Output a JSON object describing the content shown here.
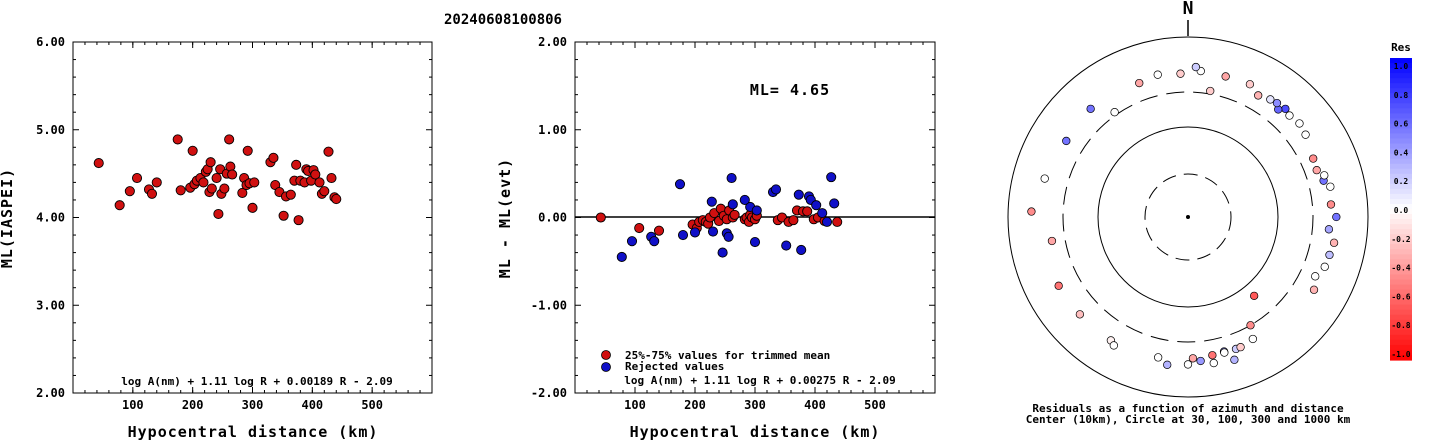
{
  "title": "20240608100806",
  "chart_data": [
    {
      "type": "scatter",
      "xlabel": "Hypocentral distance (km)",
      "ylabel": "ML(IASPEI)",
      "xlim": [
        0,
        600
      ],
      "ylim": [
        2.0,
        6.0
      ],
      "x_ticks": [
        "100",
        "200",
        "300",
        "400",
        "500"
      ],
      "y_ticks": [
        "2.00",
        "3.00",
        "4.00",
        "5.00",
        "6.00"
      ],
      "formula": "log A(nm) + 1.11 log R + 0.00189 R - 2.09",
      "series": [
        {
          "color": "#d01010",
          "points": [
            [
              43,
              4.62
            ],
            [
              78,
              4.14
            ],
            [
              95,
              4.3
            ],
            [
              107,
              4.45
            ],
            [
              127,
              4.32
            ],
            [
              132,
              4.27
            ],
            [
              140,
              4.4
            ],
            [
              175,
              4.89
            ],
            [
              180,
              4.31
            ],
            [
              196,
              4.34
            ],
            [
              200,
              4.76
            ],
            [
              203,
              4.38
            ],
            [
              207,
              4.42
            ],
            [
              213,
              4.45
            ],
            [
              218,
              4.4
            ],
            [
              222,
              4.52
            ],
            [
              225,
              4.55
            ],
            [
              228,
              4.29
            ],
            [
              230,
              4.63
            ],
            [
              232,
              4.33
            ],
            [
              240,
              4.45
            ],
            [
              243,
              4.04
            ],
            [
              246,
              4.55
            ],
            [
              248,
              4.27
            ],
            [
              253,
              4.33
            ],
            [
              257,
              4.5
            ],
            [
              261,
              4.89
            ],
            [
              263,
              4.58
            ],
            [
              266,
              4.49
            ],
            [
              283,
              4.28
            ],
            [
              286,
              4.45
            ],
            [
              290,
              4.37
            ],
            [
              292,
              4.76
            ],
            [
              295,
              4.39
            ],
            [
              300,
              4.11
            ],
            [
              303,
              4.4
            ],
            [
              330,
              4.63
            ],
            [
              335,
              4.68
            ],
            [
              338,
              4.37
            ],
            [
              345,
              4.29
            ],
            [
              352,
              4.02
            ],
            [
              356,
              4.24
            ],
            [
              364,
              4.26
            ],
            [
              370,
              4.42
            ],
            [
              373,
              4.6
            ],
            [
              377,
              3.97
            ],
            [
              380,
              4.42
            ],
            [
              387,
              4.4
            ],
            [
              390,
              4.55
            ],
            [
              393,
              4.53
            ],
            [
              398,
              4.42
            ],
            [
              402,
              4.54
            ],
            [
              405,
              4.49
            ],
            [
              412,
              4.4
            ],
            [
              416,
              4.27
            ],
            [
              420,
              4.3
            ],
            [
              427,
              4.75
            ],
            [
              432,
              4.45
            ],
            [
              437,
              4.23
            ],
            [
              440,
              4.21
            ]
          ]
        }
      ]
    },
    {
      "type": "scatter",
      "xlabel": "Hypocentral distance (km)",
      "ylabel": "ML - ML(evt)",
      "xlim": [
        0,
        600
      ],
      "ylim": [
        -2.0,
        2.0
      ],
      "x_ticks": [
        "100",
        "200",
        "300",
        "400",
        "500"
      ],
      "y_ticks": [
        "-2.00",
        "-1.00",
        "0.00",
        "1.00",
        "2.00"
      ],
      "annotation": "ML= 4.65",
      "legend": [
        "25%-75% values for trimmed mean",
        "Rejected values"
      ],
      "formula": "log A(nm) + 1.11 log R + 0.00275 R - 2.09",
      "series": [
        {
          "name": "25%-75% values for trimmed mean",
          "color": "#d01010",
          "points": [
            [
              43,
              0.0
            ],
            [
              107,
              -0.12
            ],
            [
              140,
              -0.15
            ],
            [
              196,
              -0.08
            ],
            [
              203,
              -0.12
            ],
            [
              207,
              -0.05
            ],
            [
              213,
              -0.03
            ],
            [
              218,
              -0.05
            ],
            [
              222,
              -0.07
            ],
            [
              225,
              0.0
            ],
            [
              232,
              0.05
            ],
            [
              240,
              -0.04
            ],
            [
              243,
              0.1
            ],
            [
              248,
              0.02
            ],
            [
              253,
              -0.02
            ],
            [
              257,
              0.08
            ],
            [
              263,
              0.0
            ],
            [
              266,
              0.03
            ],
            [
              283,
              -0.02
            ],
            [
              286,
              0.0
            ],
            [
              290,
              -0.05
            ],
            [
              292,
              0.03
            ],
            [
              295,
              0.0
            ],
            [
              300,
              -0.02
            ],
            [
              303,
              0.02
            ],
            [
              338,
              -0.03
            ],
            [
              345,
              0.0
            ],
            [
              356,
              -0.05
            ],
            [
              364,
              -0.03
            ],
            [
              370,
              0.08
            ],
            [
              380,
              0.07
            ],
            [
              387,
              0.07
            ],
            [
              398,
              -0.02
            ],
            [
              405,
              0.0
            ],
            [
              416,
              -0.04
            ],
            [
              437,
              -0.05
            ]
          ]
        },
        {
          "name": "Rejected values",
          "color": "#1010c8",
          "points": [
            [
              78,
              -0.45
            ],
            [
              95,
              -0.27
            ],
            [
              127,
              -0.22
            ],
            [
              132,
              -0.27
            ],
            [
              175,
              0.38
            ],
            [
              180,
              -0.2
            ],
            [
              200,
              -0.17
            ],
            [
              228,
              0.18
            ],
            [
              230,
              -0.16
            ],
            [
              246,
              -0.4
            ],
            [
              261,
              0.45
            ],
            [
              263,
              0.15
            ],
            [
              292,
              0.12
            ],
            [
              300,
              -0.28
            ],
            [
              330,
              0.29
            ],
            [
              335,
              0.32
            ],
            [
              352,
              -0.32
            ],
            [
              373,
              0.26
            ],
            [
              377,
              -0.37
            ],
            [
              390,
              0.24
            ],
            [
              393,
              0.2
            ],
            [
              402,
              0.14
            ],
            [
              412,
              0.05
            ],
            [
              420,
              -0.05
            ],
            [
              427,
              0.46
            ],
            [
              432,
              0.16
            ],
            [
              253,
              -0.18
            ],
            [
              256,
              -0.22
            ],
            [
              283,
              0.2
            ],
            [
              303,
              0.08
            ]
          ]
        }
      ]
    },
    {
      "type": "scatter",
      "subtype": "polar",
      "north_label": "N",
      "caption_line1": "Residuals as a function of azimuth and distance",
      "caption_line2": "Center (10km), Circle at 30, 100, 300 and 1000 km",
      "colorbar": {
        "title": "Res",
        "labels": [
          "1.0",
          "0.8",
          "0.6",
          "0.4",
          "0.2",
          "0.0",
          "-0.2",
          "-0.4",
          "-0.6",
          "-0.8",
          "-1.0"
        ],
        "range": [
          -1.0,
          1.0
        ]
      },
      "stations": [
        {
          "az": -35,
          "dist": 320,
          "res": 0.0
        },
        {
          "az": -42,
          "dist": 470,
          "res": 0.55
        },
        {
          "az": -58,
          "dist": 450,
          "res": 0.55
        },
        {
          "az": -75,
          "dist": 500,
          "res": 0.0
        },
        {
          "az": -88,
          "dist": 600,
          "res": -0.45
        },
        {
          "az": -100,
          "dist": 400,
          "res": -0.35
        },
        {
          "az": -118,
          "dist": 480,
          "res": -0.55
        },
        {
          "az": -132,
          "dist": 470,
          "res": -0.25
        },
        {
          "az": -148,
          "dist": 470,
          "res": -0.05
        },
        {
          "az": -150,
          "dist": 500,
          "res": 0.0
        },
        {
          "az": -168,
          "dist": 450,
          "res": 0.0
        },
        {
          "az": -172,
          "dist": 510,
          "res": 0.3
        },
        {
          "az": -182,
          "dist": 430,
          "res": -0.35
        },
        {
          "az": -190,
          "dist": 420,
          "res": -0.55
        },
        {
          "az": -195,
          "dist": 410,
          "res": 0.45
        },
        {
          "az": -200,
          "dist": 420,
          "res": 0.2
        },
        {
          "az": 140,
          "dist": 150,
          "res": -0.65
        },
        {
          "az": 150,
          "dist": 300,
          "res": -0.45
        },
        {
          "az": 152,
          "dist": 400,
          "res": 0.0
        },
        {
          "az": 158,
          "dist": 420,
          "res": -0.2
        },
        {
          "az": 165,
          "dist": 420,
          "res": 0.0
        },
        {
          "az": 162,
          "dist": 520,
          "res": 0.3
        },
        {
          "az": 170,
          "dist": 500,
          "res": 0.0
        },
        {
          "az": 175,
          "dist": 460,
          "res": 0.4
        },
        {
          "az": 180,
          "dist": 490,
          "res": 0.0
        },
        {
          "az": 120,
          "dist": 470,
          "res": -0.3
        },
        {
          "az": 115,
          "dist": 420,
          "res": 0.0
        },
        {
          "az": 110,
          "dist": 470,
          "res": 0.0
        },
        {
          "az": 105,
          "dist": 480,
          "res": 0.25
        },
        {
          "az": 100,
          "dist": 500,
          "res": -0.3
        },
        {
          "az": 95,
          "dist": 430,
          "res": 0.35
        },
        {
          "az": 90,
          "dist": 500,
          "res": 0.55
        },
        {
          "az": 85,
          "dist": 450,
          "res": -0.45
        },
        {
          "az": 78,
          "dist": 470,
          "res": 0.0
        },
        {
          "az": 75,
          "dist": 420,
          "res": 0.55
        },
        {
          "az": 73,
          "dist": 440,
          "res": 0.0
        },
        {
          "az": 70,
          "dist": 390,
          "res": -0.35
        },
        {
          "az": 65,
          "dist": 400,
          "res": -0.45
        },
        {
          "az": 55,
          "dist": 450,
          "res": 0.0
        },
        {
          "az": 50,
          "dist": 470,
          "res": 0.0
        },
        {
          "az": 45,
          "dist": 450,
          "res": 0.0
        },
        {
          "az": 42,
          "dist": 470,
          "res": 0.7
        },
        {
          "az": 40,
          "dist": 420,
          "res": 0.6
        },
        {
          "az": 38,
          "dist": 460,
          "res": 0.45
        },
        {
          "az": 35,
          "dist": 450,
          "res": 0.1
        },
        {
          "az": 30,
          "dist": 420,
          "res": -0.3
        },
        {
          "az": 25,
          "dist": 480,
          "res": -0.2
        },
        {
          "az": 15,
          "dist": 470,
          "res": -0.35
        },
        {
          "az": 10,
          "dist": 320,
          "res": -0.2
        },
        {
          "az": 5,
          "dist": 480,
          "res": 0.0
        },
        {
          "az": 3,
          "dist": 520,
          "res": 0.2
        },
        {
          "az": -3,
          "dist": 450,
          "res": -0.2
        },
        {
          "az": -12,
          "dist": 470,
          "res": 0.0
        },
        {
          "az": -20,
          "dist": 440,
          "res": -0.35
        }
      ]
    }
  ]
}
